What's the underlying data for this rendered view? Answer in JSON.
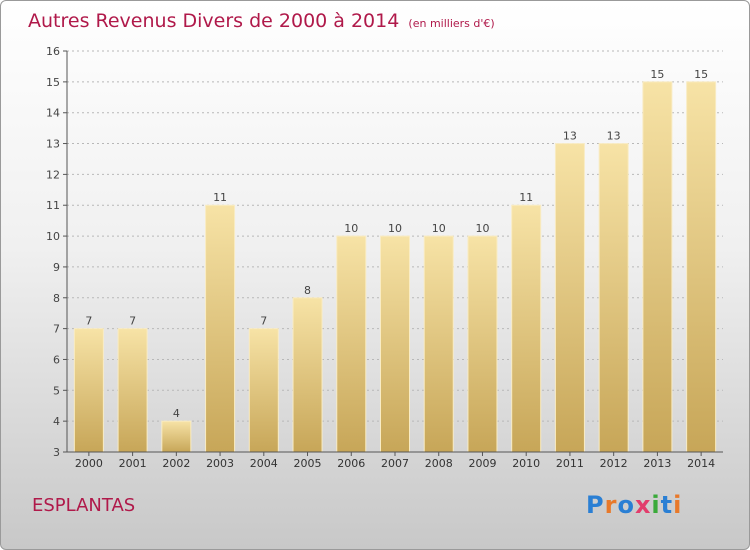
{
  "title": "Autres Revenus Divers de 2000 à 2014",
  "unit_note": "(en milliers d'€)",
  "town": "ESPLANTAS",
  "logo_text": "Proxiti",
  "colors": {
    "title": "#b0194a",
    "bar_light": "#f5dea0",
    "bar_dark": "#c9a85a",
    "bar_edge": "#f9ecc4"
  },
  "chart_data": {
    "type": "bar",
    "title": "Autres Revenus Divers de 2000 à 2014",
    "xlabel": "",
    "ylabel": "",
    "ylim": [
      3,
      16
    ],
    "yticks": [
      3,
      4,
      5,
      6,
      7,
      8,
      9,
      10,
      11,
      12,
      13,
      14,
      15,
      16
    ],
    "grid": true,
    "categories": [
      "2000",
      "2001",
      "2002",
      "2003",
      "2004",
      "2005",
      "2006",
      "2007",
      "2008",
      "2009",
      "2010",
      "2011",
      "2012",
      "2013",
      "2014"
    ],
    "values": [
      7,
      7,
      4,
      11,
      7,
      8,
      10,
      10,
      10,
      10,
      11,
      13,
      13,
      15,
      15
    ]
  }
}
